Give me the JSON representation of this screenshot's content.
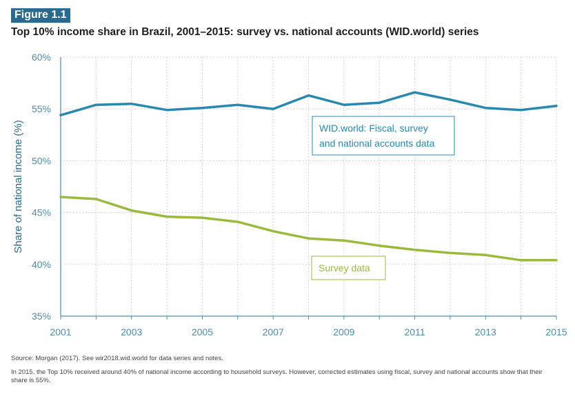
{
  "figure": {
    "badge": "Figure 1.1",
    "title": "Top 10% income share in Brazil, 2001–2015: survey vs. national accounts (WID.world) series",
    "source": "Source: Morgan (2017). See wir2018.wid.world for data series and notes.",
    "note": "In 2015, the Top 10% received around 40% of national income according to household surveys. However, corrected estimates using fiscal, survey and national accounts show that their share is 55%."
  },
  "chart_data": {
    "type": "line",
    "title": "Top 10% income share in Brazil, 2001–2015: survey vs. national accounts (WID.world) series",
    "xlabel": "",
    "ylabel": "Share of national income (%)",
    "x": [
      2001,
      2002,
      2003,
      2004,
      2005,
      2006,
      2007,
      2008,
      2009,
      2010,
      2011,
      2012,
      2013,
      2014,
      2015
    ],
    "xlim": [
      2001,
      2015
    ],
    "ylim": [
      35,
      60
    ],
    "x_ticks": [
      2001,
      2003,
      2005,
      2007,
      2009,
      2011,
      2013,
      2015
    ],
    "y_ticks": [
      35,
      40,
      45,
      50,
      55,
      60
    ],
    "y_tick_labels": [
      "35%",
      "40%",
      "45%",
      "50%",
      "55%",
      "60%"
    ],
    "grid": "dotted",
    "series": [
      {
        "name": "WID.world: Fiscal, survey and national accounts data",
        "label_lines": [
          "WID.world: Fiscal, survey",
          "and national accounts data"
        ],
        "color": "#2888b0",
        "values": [
          54.4,
          55.4,
          55.5,
          54.9,
          55.1,
          55.4,
          55.0,
          56.3,
          55.4,
          55.6,
          56.6,
          55.9,
          55.1,
          54.9,
          55.3
        ]
      },
      {
        "name": "Survey data",
        "label_lines": [
          "Survey data"
        ],
        "color": "#98bb3c",
        "values": [
          46.5,
          46.3,
          45.2,
          44.6,
          44.5,
          44.1,
          43.2,
          42.5,
          42.3,
          41.8,
          41.4,
          41.1,
          40.9,
          40.4,
          40.4
        ]
      }
    ]
  }
}
